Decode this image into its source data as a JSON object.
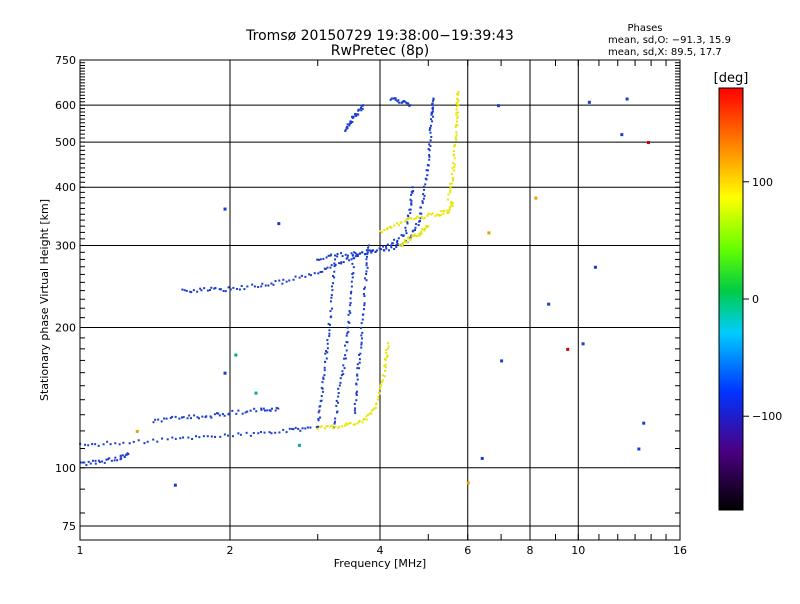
{
  "chart_data": {
    "type": "scatter",
    "title": "Tromsø 20150729 19:38:00−19:39:43",
    "subtitle": "RwPretec (8p)",
    "xlabel": "Frequency [MHz]",
    "ylabel": "Stationary phase Virtual Height [km]",
    "x_scale": "log",
    "y_scale": "log",
    "xlim": [
      1,
      16
    ],
    "ylim": [
      70,
      750
    ],
    "x_ticks": [
      1,
      2,
      4,
      6,
      8,
      10,
      16
    ],
    "y_ticks": [
      75,
      100,
      200,
      300,
      400,
      500,
      600,
      750
    ],
    "grid": true,
    "phase_info": {
      "heading": "Phases",
      "line1": "mean, sd,O: −91.3, 15.9",
      "line2": "mean, sd,X:  89.5, 17.7"
    },
    "colorbar": {
      "label": "[deg]",
      "range": [
        -180,
        180
      ],
      "ticks": [
        "100",
        "0",
        "−100"
      ],
      "tick_values": [
        100,
        0,
        -100
      ]
    },
    "series": [
      {
        "mode": "O",
        "color": "#1a3ccf",
        "points": []
      },
      {
        "mode": "X",
        "color": "#e6e600",
        "points": []
      }
    ],
    "traces_O": [
      [
        [
          1.0,
          102
        ],
        [
          1.1,
          103
        ],
        [
          1.2,
          105
        ],
        [
          1.25,
          107
        ]
      ],
      [
        [
          1.0,
          112
        ],
        [
          1.2,
          113
        ],
        [
          1.5,
          115
        ],
        [
          1.8,
          117
        ],
        [
          2.2,
          118
        ],
        [
          2.6,
          120
        ],
        [
          2.9,
          122
        ]
      ],
      [
        [
          1.4,
          126
        ],
        [
          1.6,
          128
        ],
        [
          1.8,
          129
        ],
        [
          2.0,
          131
        ],
        [
          2.3,
          133
        ],
        [
          2.5,
          134
        ]
      ],
      [
        [
          1.6,
          240
        ],
        [
          1.8,
          241
        ],
        [
          2.0,
          242
        ],
        [
          2.3,
          246
        ],
        [
          2.6,
          252
        ],
        [
          3.0,
          262
        ],
        [
          3.3,
          275
        ],
        [
          3.6,
          286
        ],
        [
          3.9,
          292
        ],
        [
          4.3,
          297
        ],
        [
          4.6,
          310
        ],
        [
          4.8,
          340
        ],
        [
          4.9,
          390
        ],
        [
          5.0,
          450
        ],
        [
          5.05,
          520
        ],
        [
          5.1,
          580
        ],
        [
          5.12,
          620
        ]
      ],
      [
        [
          3.0,
          122
        ],
        [
          3.05,
          140
        ],
        [
          3.1,
          165
        ],
        [
          3.15,
          190
        ],
        [
          3.2,
          230
        ],
        [
          3.25,
          280
        ]
      ],
      [
        [
          3.25,
          122
        ],
        [
          3.3,
          145
        ],
        [
          3.4,
          170
        ],
        [
          3.45,
          200
        ],
        [
          3.5,
          240
        ],
        [
          3.55,
          290
        ]
      ],
      [
        [
          3.55,
          130
        ],
        [
          3.6,
          155
        ],
        [
          3.65,
          180
        ],
        [
          3.7,
          215
        ],
        [
          3.75,
          260
        ],
        [
          3.8,
          300
        ]
      ],
      [
        [
          3.0,
          280
        ],
        [
          3.3,
          286
        ],
        [
          3.7,
          290
        ],
        [
          4.2,
          300
        ],
        [
          4.5,
          320
        ],
        [
          4.6,
          360
        ],
        [
          4.65,
          400
        ]
      ],
      [
        [
          3.4,
          530
        ],
        [
          3.5,
          555
        ],
        [
          3.6,
          575
        ],
        [
          3.7,
          600
        ]
      ],
      [
        [
          4.2,
          620
        ],
        [
          4.4,
          610
        ],
        [
          4.6,
          600
        ]
      ]
    ],
    "traces_X": [
      [
        [
          3.0,
          122
        ],
        [
          3.3,
          122
        ],
        [
          3.6,
          125
        ],
        [
          3.85,
          130
        ],
        [
          4.0,
          145
        ],
        [
          4.1,
          165
        ],
        [
          4.15,
          185
        ]
      ],
      [
        [
          4.0,
          320
        ],
        [
          4.4,
          335
        ],
        [
          4.8,
          345
        ],
        [
          5.2,
          350
        ],
        [
          5.5,
          355
        ],
        [
          5.6,
          370
        ]
      ],
      [
        [
          5.5,
          380
        ],
        [
          5.6,
          420
        ],
        [
          5.65,
          480
        ],
        [
          5.7,
          540
        ],
        [
          5.72,
          600
        ],
        [
          5.75,
          640
        ]
      ],
      [
        [
          4.4,
          300
        ],
        [
          4.6,
          310
        ],
        [
          4.8,
          318
        ],
        [
          5.0,
          330
        ]
      ]
    ],
    "scatter_extra": [
      [
        1.55,
        92,
        "#1a3ccf"
      ],
      [
        1.3,
        120,
        "#e6a000"
      ],
      [
        6.0,
        93,
        "#e6a000"
      ],
      [
        6.4,
        105,
        "#1a3ccf"
      ],
      [
        8.2,
        380,
        "#e6a000"
      ],
      [
        10.5,
        610,
        "#1a3ccf"
      ],
      [
        12.5,
        620,
        "#1a3ccf"
      ],
      [
        10.8,
        270,
        "#1a3ccf"
      ],
      [
        13.5,
        125,
        "#1a3ccf"
      ],
      [
        13.2,
        110,
        "#1a3ccf"
      ],
      [
        6.6,
        320,
        "#e6a000"
      ],
      [
        7.0,
        170,
        "#1a3ccf"
      ],
      [
        6.9,
        600,
        "#1a3ccf"
      ],
      [
        9.5,
        180,
        "#cc0000"
      ],
      [
        10.2,
        185,
        "#1a3ccf"
      ],
      [
        13.8,
        500,
        "#cc0000"
      ],
      [
        12.2,
        520,
        "#1a3ccf"
      ],
      [
        8.7,
        225,
        "#1a3ccf"
      ],
      [
        2.5,
        335,
        "#1a3ccf"
      ],
      [
        1.95,
        360,
        "#1a3ccf"
      ],
      [
        2.05,
        175,
        "#00aa88"
      ],
      [
        1.95,
        160,
        "#1a3ccf"
      ],
      [
        2.25,
        145,
        "#00aaaa"
      ],
      [
        2.75,
        112,
        "#00aaaa"
      ]
    ]
  }
}
